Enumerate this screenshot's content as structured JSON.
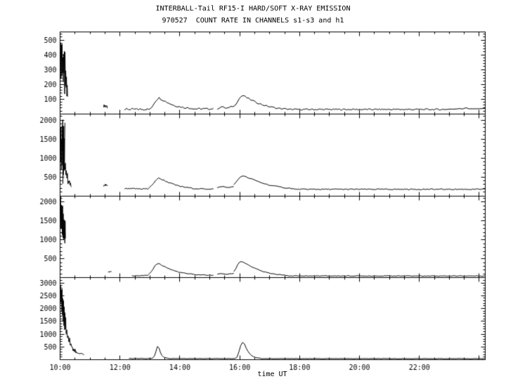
{
  "chart_data": {
    "type": "line",
    "title": "INTERBALL-Tail RF15-I HARD/SOFT X-RAY EMISSION",
    "subtitle": "970527  COUNT RATE IN CHANNELS s1-s3 and h1",
    "xlabel": "time UT",
    "ylabel": "",
    "axis_color": "#000000",
    "bg_color": "#ffffff",
    "grid": false,
    "legend": "none",
    "xlim": [
      10,
      24.2
    ],
    "x_minor_step": 0.5,
    "x_ticks": [
      {
        "v": 10,
        "label": "10:00"
      },
      {
        "v": 12,
        "label": "12:00"
      },
      {
        "v": 14,
        "label": "14:00"
      },
      {
        "v": 16,
        "label": "16:00"
      },
      {
        "v": 18,
        "label": "18:00"
      },
      {
        "v": 20,
        "label": "20:00"
      },
      {
        "v": 22,
        "label": "22:00"
      },
      {
        "v": 24,
        "label": ""
      }
    ],
    "panels": [
      {
        "name": "channel-s1",
        "ylim": [
          0,
          555
        ],
        "y_major_step": 100,
        "y_minor_step": 20,
        "y_tick_max": 500,
        "y_tick_labels": [
          "100",
          "200",
          "300",
          "400",
          "500"
        ],
        "segments": [
          {
            "x0": 10.02,
            "x1": 10.25,
            "y": [
              420,
              300,
              460,
              280,
              480,
              260,
              430,
              240,
              400,
              210,
              380,
              180,
              350,
              150,
              300,
              120,
              260,
              100,
              220,
              80
            ],
            "jitter": 70
          },
          {
            "x0": 11.45,
            "x1": 11.58,
            "y": [
              44,
              60,
              47,
              63,
              50,
              56,
              46
            ],
            "jitter": 8
          },
          {
            "x0": 12.15,
            "x1": 13.0,
            "y": 31,
            "n": 28,
            "jitter": 7
          },
          {
            "x0": 13.0,
            "x1": 14.5,
            "y": [
              34,
              45,
              60,
              78,
              92,
              103,
              108,
              101,
              96,
              91,
              85,
              79,
              74,
              69,
              64,
              60,
              57,
              54,
              51,
              49,
              47,
              45,
              43,
              42,
              41,
              40,
              39,
              38,
              37,
              36
            ],
            "jitter": 6
          },
          {
            "x0": 14.5,
            "x1": 15.12,
            "y": 34,
            "n": 16,
            "jitter": 6
          },
          {
            "x0": 15.25,
            "x1": 15.85,
            "y": [
              36,
              42,
              48,
              44,
              40,
              39,
              42,
              46,
              52,
              58
            ],
            "jitter": 6
          },
          {
            "x0": 15.85,
            "x1": 17.6,
            "y": [
              62,
              82,
              102,
              118,
              124,
              117,
              109,
              102,
              95,
              89,
              83,
              77,
              72,
              67,
              62,
              58,
              54,
              51,
              48,
              45,
              42,
              40,
              38,
              36,
              35,
              34,
              33,
              32
            ],
            "jitter": 5
          },
          {
            "x0": 17.6,
            "x1": 22.8,
            "y": 30,
            "n": 130,
            "jitter": 5
          },
          {
            "x0": 22.8,
            "x1": 24.2,
            "y": [
              31,
              33,
              32,
              35,
              33,
              36,
              34,
              37,
              35,
              38,
              36,
              40,
              38,
              41
            ],
            "jitter": 7
          }
        ]
      },
      {
        "name": "channel-s2",
        "ylim": [
          0,
          2165
        ],
        "y_major_step": 500,
        "y_minor_step": 100,
        "y_tick_max": 2000,
        "y_tick_labels": [
          "500",
          "1000",
          "1500",
          "2000"
        ],
        "segments": [
          {
            "x0": 10.02,
            "x1": 10.16,
            "y": 1150,
            "n": 26,
            "jitter": 880
          },
          {
            "x0": 10.16,
            "x1": 10.38,
            "y": [
              700,
              850,
              560,
              680,
              450,
              540,
              360,
              430,
              300,
              350,
              250,
              290,
              220,
              250
            ],
            "jitter": 60
          },
          {
            "x0": 11.45,
            "x1": 11.58,
            "y": [
              245,
              290,
              255,
              300,
              260,
              280,
              250
            ],
            "jitter": 20
          },
          {
            "x0": 12.15,
            "x1": 12.95,
            "y": 185,
            "n": 24,
            "jitter": 20
          },
          {
            "x0": 12.95,
            "x1": 14.6,
            "y": [
              200,
              225,
              275,
              335,
              395,
              440,
              462,
              450,
              432,
              412,
              392,
              372,
              352,
              332,
              313,
              297,
              282,
              269,
              257,
              247,
              238,
              230,
              223,
              216,
              210,
              205,
              200,
              196,
              192,
              189
            ],
            "jitter": 16
          },
          {
            "x0": 14.6,
            "x1": 15.12,
            "y": 182,
            "n": 13,
            "jitter": 16
          },
          {
            "x0": 15.25,
            "x1": 15.8,
            "y": [
              200,
              228,
              250,
              241,
              226,
              216,
              221,
              236,
              256
            ],
            "jitter": 16
          },
          {
            "x0": 15.8,
            "x1": 17.8,
            "y": [
              285,
              345,
              425,
              492,
              528,
              514,
              494,
              474,
              454,
              434,
              414,
              394,
              374,
              355,
              336,
              319,
              303,
              289,
              276,
              264,
              253,
              243,
              234,
              226,
              219,
              213,
              207,
              202,
              197,
              193
            ],
            "jitter": 14
          },
          {
            "x0": 17.8,
            "x1": 24.2,
            "y": 172,
            "n": 160,
            "jitter": 14
          }
        ]
      },
      {
        "name": "channel-s3",
        "ylim": [
          0,
          2165
        ],
        "y_major_step": 500,
        "y_minor_step": 100,
        "y_tick_max": 2000,
        "y_tick_labels": [
          "500",
          "1000",
          "1500",
          "2000"
        ],
        "segments": [
          {
            "x0": 10.02,
            "x1": 10.18,
            "y": [
              2050,
              1350,
              1980,
              1250,
              1900,
              1150,
              1800,
              1100,
              1700,
              1050,
              1600,
              1000,
              1500,
              980,
              1400,
              960
            ],
            "jitter": 120
          },
          {
            "x0": 11.6,
            "x1": 11.72,
            "y": [
              140,
              170,
              148,
              178,
              152
            ],
            "jitter": 15
          },
          {
            "x0": 12.4,
            "x1": 12.95,
            "y": 58,
            "n": 14,
            "jitter": 12
          },
          {
            "x0": 12.95,
            "x1": 14.4,
            "y": [
              72,
              112,
              172,
              242,
              312,
              362,
              378,
              362,
              340,
              318,
              296,
              274,
              254,
              235,
              217,
              201,
              186,
              172,
              160,
              149,
              139,
              130,
              122,
              115,
              109,
              103,
              98,
              94
            ],
            "jitter": 12
          },
          {
            "x0": 14.4,
            "x1": 15.12,
            "y": [
              90,
              87,
              84,
              81,
              79,
              77,
              75,
              73,
              72,
              71,
              70,
              69,
              68,
              67
            ],
            "jitter": 11
          },
          {
            "x0": 15.25,
            "x1": 15.8,
            "y": [
              85,
              100,
              112,
              106,
              96,
              91,
              96,
              106,
              122
            ],
            "jitter": 11
          },
          {
            "x0": 15.8,
            "x1": 17.6,
            "y": [
              155,
              235,
              335,
              408,
              432,
              416,
              390,
              362,
              334,
              307,
              281,
              257,
              235,
              214,
              195,
              177,
              161,
              147,
              134,
              122,
              112,
              103,
              95,
              88,
              82,
              77,
              72,
              68,
              65,
              62
            ],
            "jitter": 9
          },
          {
            "x0": 17.6,
            "x1": 24.2,
            "y": 48,
            "n": 160,
            "jitter": 9
          }
        ]
      },
      {
        "name": "channel-h1",
        "ylim": [
          0,
          3200
        ],
        "y_major_step": 500,
        "y_minor_step": 100,
        "y_tick_max": 3000,
        "y_tick_labels": [
          "500",
          "1000",
          "1500",
          "2000",
          "2500",
          "3000"
        ],
        "segments": [
          {
            "x0": 10.02,
            "x1": 10.2,
            "y": [
              2950,
              2100,
              2850,
              1900,
              2700,
              1750,
              2500,
              1600,
              2300,
              1450,
              2100,
              1300,
              1900,
              1200,
              1750,
              1100
            ],
            "jitter": 160
          },
          {
            "x0": 10.2,
            "x1": 10.55,
            "y": [
              1000,
              1150,
              850,
              950,
              700,
              800,
              580,
              650,
              480,
              540,
              400,
              450,
              340,
              380,
              300,
              330
            ],
            "jitter": 60
          },
          {
            "x0": 10.55,
            "x1": 10.8,
            "y": [
              280,
              255,
              235,
              218,
              205,
              195
            ],
            "jitter": 30
          },
          {
            "x0": 12.3,
            "x1": 13.05,
            "y": 46,
            "n": 20,
            "jitter": 8
          },
          {
            "x0": 13.05,
            "x1": 13.6,
            "y": [
              50,
              70,
              140,
              320,
              520,
              470,
              280,
              160,
              105,
              80,
              65,
              58
            ],
            "jitter": 9
          },
          {
            "x0": 13.6,
            "x1": 15.85,
            "y": 45,
            "n": 55,
            "jitter": 7
          },
          {
            "x0": 15.85,
            "x1": 16.7,
            "y": [
              55,
              110,
              300,
              560,
              680,
              620,
              460,
              330,
              235,
              165,
              120,
              92,
              75,
              64,
              58
            ],
            "jitter": 9
          },
          {
            "x0": 16.7,
            "x1": 24.2,
            "y": 42,
            "n": 180,
            "jitter": 7
          }
        ]
      }
    ]
  }
}
